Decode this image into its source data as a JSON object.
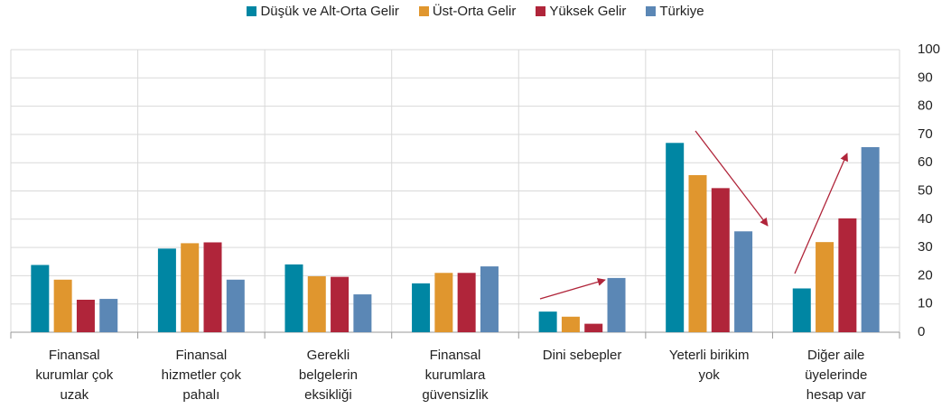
{
  "chart_data": {
    "type": "bar",
    "categories": [
      [
        "Finansal",
        "kurumlar çok",
        "uzak"
      ],
      [
        "Finansal",
        "hizmetler çok",
        "pahalı"
      ],
      [
        "Gerekli",
        "belgelerin",
        "eksikliği"
      ],
      [
        "Finansal",
        "kurumlara",
        "güvensizlik"
      ],
      [
        "Dini sebepler"
      ],
      [
        "Yeterli birikim",
        "yok"
      ],
      [
        "Diğer aile",
        "üyelerinde",
        "hesap var"
      ]
    ],
    "series": [
      {
        "name": "Düşük ve Alt-Orta Gelir",
        "color": "#0086a3",
        "values": [
          23.8,
          29.6,
          24,
          17.3,
          7.3,
          67,
          15.5
        ]
      },
      {
        "name": "Üst-Orta Gelir",
        "color": "#e0962e",
        "values": [
          18.6,
          31.5,
          19.8,
          21,
          5.5,
          55.6,
          31.9
        ]
      },
      {
        "name": "Yüksek Gelir",
        "color": "#b0253a",
        "values": [
          11.5,
          31.8,
          19.6,
          21,
          3,
          51,
          40.3
        ]
      },
      {
        "name": "Türkiye",
        "color": "#5b87b5",
        "values": [
          11.8,
          18.6,
          13.4,
          23.3,
          19.2,
          35.7,
          65.5
        ]
      }
    ],
    "ylim": [
      0,
      100
    ],
    "yticks": [
      0,
      10,
      20,
      30,
      40,
      50,
      60,
      70,
      80,
      90,
      100
    ],
    "grid": true,
    "y_axis_side": "right",
    "legend": "top"
  }
}
